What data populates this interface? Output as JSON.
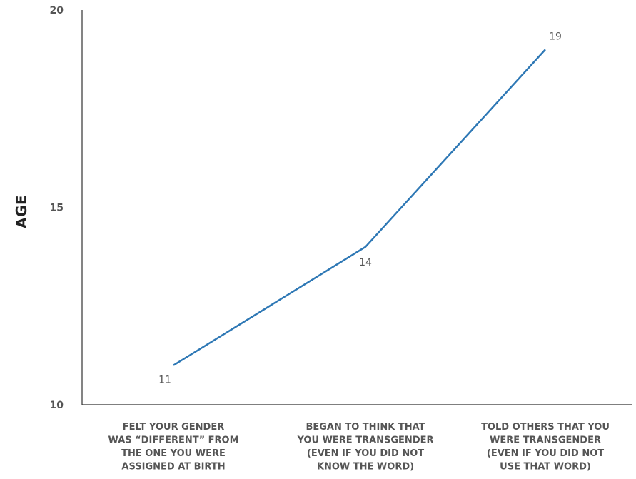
{
  "chart_data": {
    "type": "line",
    "title": "",
    "xlabel": "",
    "ylabel": "AGE",
    "categories": [
      [
        "FELT YOUR GENDER",
        "WAS “DIFFERENT” FROM",
        "THE ONE YOU WERE",
        "ASSIGNED AT BIRTH"
      ],
      [
        "BEGAN TO THINK THAT",
        "YOU WERE TRANSGENDER",
        "(EVEN IF YOU DID NOT",
        "KNOW THE WORD)"
      ],
      [
        "TOLD OTHERS THAT YOU",
        "WERE TRANSGENDER",
        "(EVEN IF YOU DID NOT",
        "USE THAT WORD)"
      ]
    ],
    "values": [
      11,
      14,
      19
    ],
    "data_labels": [
      "11",
      "14",
      "19"
    ],
    "yticks": [
      10,
      15,
      20
    ],
    "ylim": [
      10,
      20
    ],
    "grid": false,
    "line_color": "#2e78b5",
    "text_color": "#555555",
    "axis_color": "#333333"
  }
}
